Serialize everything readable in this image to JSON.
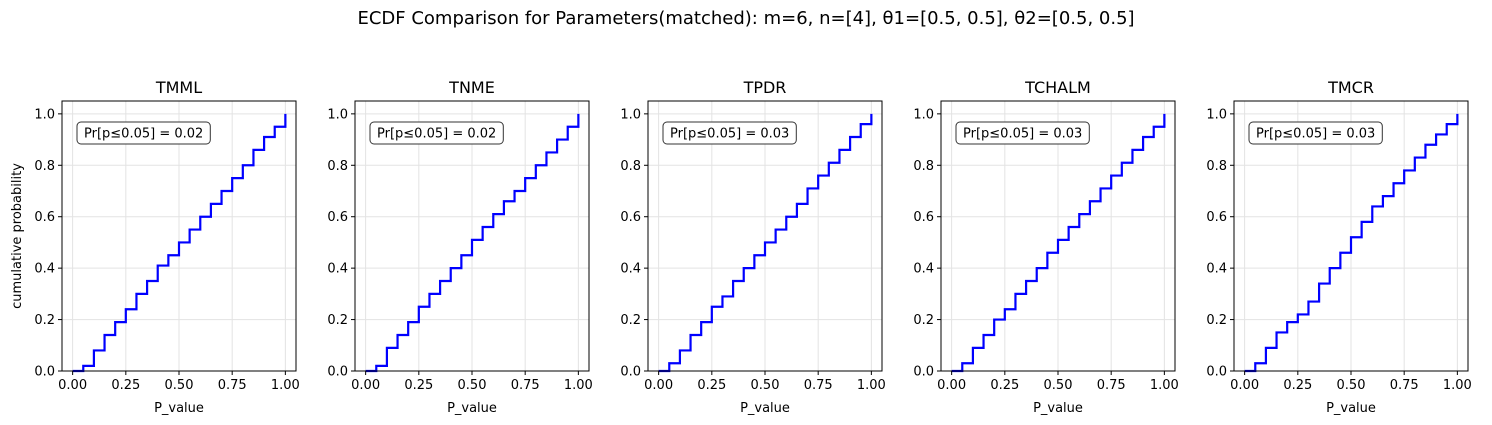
{
  "figure": {
    "suptitle": "ECDF Comparison for Parameters(matched): m=6, n=[4], θ1=[0.5, 0.5], θ2=[0.5, 0.5]"
  },
  "colors": {
    "line": "#0000ff",
    "grid": "#e3e3e3",
    "axes": "#000000",
    "annotation_border": "#333333"
  },
  "chart_data": [
    {
      "type": "line",
      "title": "TMML",
      "xlabel": "P_value",
      "ylabel": "cumulative probability",
      "annotation": "Pr[p≤0.05] = 0.02",
      "annotation_location": "upper-left",
      "grid": true,
      "xlim": [
        -0.05,
        1.05
      ],
      "ylim": [
        0.0,
        1.05
      ],
      "xticks": [
        "0.00",
        "0.25",
        "0.50",
        "0.75",
        "1.00"
      ],
      "yticks": [
        "0.0",
        "0.2",
        "0.4",
        "0.6",
        "0.8",
        "1.0"
      ],
      "series": [
        {
          "x": [
            0.0,
            0.02,
            0.05,
            0.1,
            0.15,
            0.2,
            0.25,
            0.3,
            0.35,
            0.4,
            0.45,
            0.5,
            0.55,
            0.6,
            0.65,
            0.7,
            0.75,
            0.8,
            0.85,
            0.9,
            0.95,
            1.0
          ],
          "y": [
            0.0,
            0.0,
            0.02,
            0.08,
            0.14,
            0.19,
            0.24,
            0.3,
            0.35,
            0.41,
            0.45,
            0.5,
            0.55,
            0.6,
            0.65,
            0.7,
            0.75,
            0.8,
            0.86,
            0.91,
            0.95,
            1.0
          ]
        }
      ]
    },
    {
      "type": "line",
      "title": "TNME",
      "xlabel": "P_value",
      "ylabel": "",
      "annotation": "Pr[p≤0.05] = 0.02",
      "annotation_location": "upper-left",
      "grid": true,
      "xlim": [
        -0.05,
        1.05
      ],
      "ylim": [
        0.0,
        1.05
      ],
      "xticks": [
        "0.00",
        "0.25",
        "0.50",
        "0.75",
        "1.00"
      ],
      "yticks": [
        "0.0",
        "0.2",
        "0.4",
        "0.6",
        "0.8",
        "1.0"
      ],
      "series": [
        {
          "x": [
            0.0,
            0.02,
            0.05,
            0.1,
            0.15,
            0.2,
            0.25,
            0.3,
            0.35,
            0.4,
            0.45,
            0.5,
            0.55,
            0.6,
            0.65,
            0.7,
            0.75,
            0.8,
            0.85,
            0.9,
            0.95,
            1.0
          ],
          "y": [
            0.0,
            0.0,
            0.02,
            0.09,
            0.14,
            0.19,
            0.25,
            0.3,
            0.35,
            0.4,
            0.45,
            0.51,
            0.56,
            0.61,
            0.66,
            0.7,
            0.75,
            0.8,
            0.85,
            0.9,
            0.95,
            1.0
          ]
        }
      ]
    },
    {
      "type": "line",
      "title": "TPDR",
      "xlabel": "P_value",
      "ylabel": "",
      "annotation": "Pr[p≤0.05] = 0.03",
      "annotation_location": "upper-left",
      "grid": true,
      "xlim": [
        -0.05,
        1.05
      ],
      "ylim": [
        0.0,
        1.05
      ],
      "xticks": [
        "0.00",
        "0.25",
        "0.50",
        "0.75",
        "1.00"
      ],
      "yticks": [
        "0.0",
        "0.2",
        "0.4",
        "0.6",
        "0.8",
        "1.0"
      ],
      "series": [
        {
          "x": [
            0.0,
            0.02,
            0.05,
            0.1,
            0.15,
            0.2,
            0.25,
            0.3,
            0.35,
            0.4,
            0.45,
            0.5,
            0.55,
            0.6,
            0.65,
            0.7,
            0.75,
            0.8,
            0.85,
            0.9,
            0.95,
            1.0
          ],
          "y": [
            0.0,
            0.0,
            0.03,
            0.08,
            0.14,
            0.19,
            0.25,
            0.29,
            0.35,
            0.4,
            0.45,
            0.5,
            0.55,
            0.6,
            0.65,
            0.71,
            0.76,
            0.81,
            0.86,
            0.91,
            0.96,
            1.0
          ]
        }
      ]
    },
    {
      "type": "line",
      "title": "TCHALM",
      "xlabel": "P_value",
      "ylabel": "",
      "annotation": "Pr[p≤0.05] = 0.03",
      "annotation_location": "upper-left",
      "grid": true,
      "xlim": [
        -0.05,
        1.05
      ],
      "ylim": [
        0.0,
        1.05
      ],
      "xticks": [
        "0.00",
        "0.25",
        "0.50",
        "0.75",
        "1.00"
      ],
      "yticks": [
        "0.0",
        "0.2",
        "0.4",
        "0.6",
        "0.8",
        "1.0"
      ],
      "series": [
        {
          "x": [
            0.0,
            0.02,
            0.05,
            0.1,
            0.15,
            0.2,
            0.25,
            0.3,
            0.35,
            0.4,
            0.45,
            0.5,
            0.55,
            0.6,
            0.65,
            0.7,
            0.75,
            0.8,
            0.85,
            0.9,
            0.95,
            1.0
          ],
          "y": [
            0.0,
            0.0,
            0.03,
            0.09,
            0.14,
            0.2,
            0.24,
            0.3,
            0.35,
            0.4,
            0.46,
            0.51,
            0.56,
            0.61,
            0.66,
            0.71,
            0.76,
            0.81,
            0.86,
            0.91,
            0.95,
            1.0
          ]
        }
      ]
    },
    {
      "type": "line",
      "title": "TMCR",
      "xlabel": "P_value",
      "ylabel": "",
      "annotation": "Pr[p≤0.05] = 0.03",
      "annotation_location": "upper-left",
      "grid": true,
      "xlim": [
        -0.05,
        1.05
      ],
      "ylim": [
        0.0,
        1.05
      ],
      "xticks": [
        "0.00",
        "0.25",
        "0.50",
        "0.75",
        "1.00"
      ],
      "yticks": [
        "0.0",
        "0.2",
        "0.4",
        "0.6",
        "0.8",
        "1.0"
      ],
      "series": [
        {
          "x": [
            0.0,
            0.02,
            0.05,
            0.1,
            0.15,
            0.2,
            0.25,
            0.3,
            0.35,
            0.4,
            0.45,
            0.5,
            0.55,
            0.6,
            0.65,
            0.7,
            0.75,
            0.8,
            0.85,
            0.9,
            0.95,
            1.0
          ],
          "y": [
            0.0,
            0.0,
            0.03,
            0.09,
            0.15,
            0.19,
            0.22,
            0.27,
            0.34,
            0.4,
            0.46,
            0.52,
            0.58,
            0.64,
            0.68,
            0.73,
            0.78,
            0.83,
            0.88,
            0.92,
            0.96,
            1.0
          ]
        }
      ]
    }
  ]
}
